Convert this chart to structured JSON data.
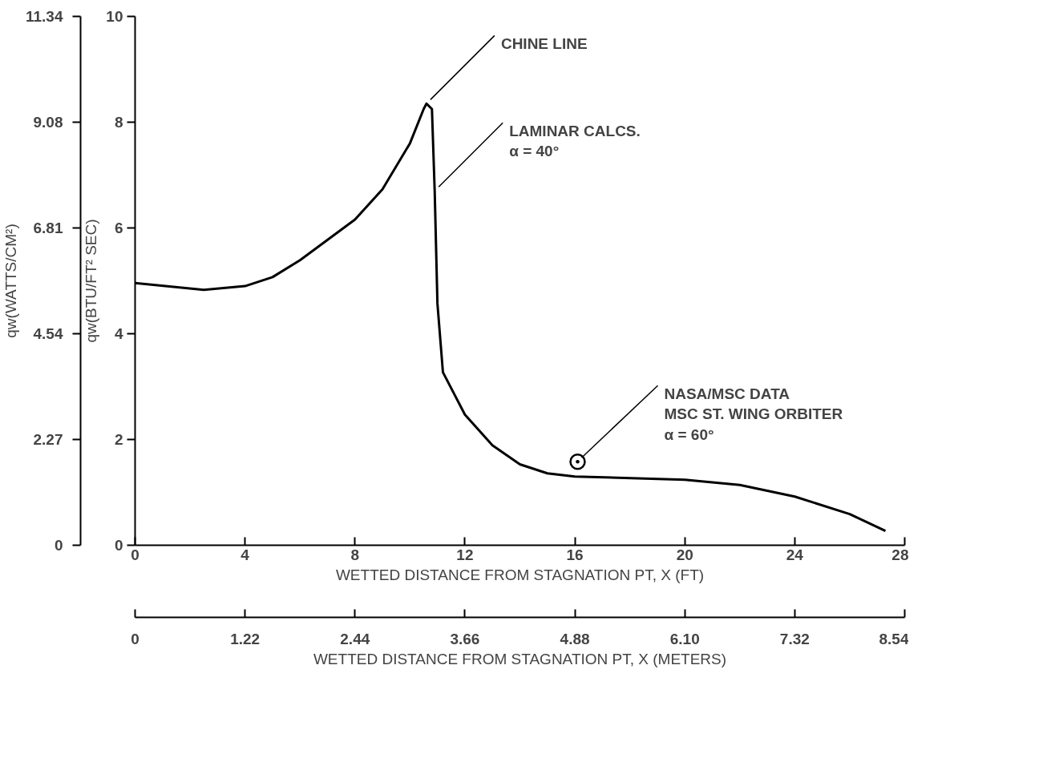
{
  "chart_data": {
    "type": "line",
    "xlabel": "WETTED DISTANCE FROM STAGNATION PT, X (FT)",
    "ylabel": "qw(BTU/FT² SEC)",
    "y2label": "qw(WATTS/CM²)",
    "x2label": "WETTED DISTANCE FROM STAGNATION PT, X (METERS)",
    "xlim": [
      0,
      28
    ],
    "xticks": [
      0,
      4,
      8,
      12,
      16,
      20,
      24,
      28
    ],
    "ylim": [
      0,
      10
    ],
    "yticks": [
      0,
      2,
      4,
      6,
      8,
      10
    ],
    "y2lim": [
      0,
      11.34
    ],
    "y2ticks": [
      0,
      2.27,
      4.54,
      6.81,
      9.08,
      11.34
    ],
    "x2lim": [
      0,
      8.54
    ],
    "x2ticks": [
      0,
      1.22,
      2.44,
      3.66,
      4.88,
      {
        "value": 6.1,
        "label": "6.10"
      },
      7.32,
      8.54
    ],
    "series": [
      {
        "color": "#000000",
        "x": [
          0,
          2.5,
          4,
          5,
          6,
          8,
          9,
          10,
          10.5,
          10.6,
          10.8,
          10.9,
          11.0,
          11.2,
          12,
          13,
          14,
          15,
          16,
          20,
          22,
          24,
          26,
          27.3
        ],
        "values": [
          4.96,
          4.83,
          4.9,
          5.07,
          5.39,
          6.16,
          6.73,
          7.6,
          8.25,
          8.35,
          8.25,
          6.7,
          4.57,
          3.27,
          2.47,
          1.89,
          1.53,
          1.36,
          1.3,
          1.24,
          1.14,
          0.92,
          0.59,
          0.27
        ]
      },
      {
        "type": "scatter",
        "color": "#000000",
        "marker": "circle",
        "x": [
          16.1
        ],
        "values": [
          1.58
        ]
      }
    ],
    "annotations": [
      {
        "text": "CHINE LINE",
        "x": 10.6,
        "y": 8.35
      },
      {
        "text": "LAMINAR CALCS.\nα = 40°",
        "x": 10.9,
        "y": 6.7
      },
      {
        "text": "NASA/MSC DATA\nMSC ST. WING ORBITER\nα = 60°",
        "x": 16.1,
        "y": 1.58
      }
    ]
  }
}
